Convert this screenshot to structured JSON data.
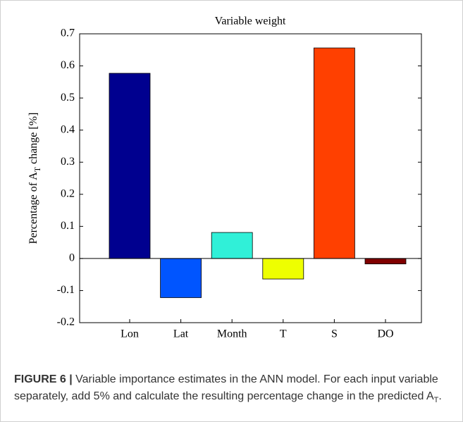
{
  "chart_data": {
    "type": "bar",
    "title": "Variable weight",
    "ylabel": "Percentage of A",
    "ylabel_sub": "T",
    "ylabel_end": "change [%]",
    "categories": [
      "Lon",
      "Lat",
      "Month",
      "T",
      "S",
      "DO"
    ],
    "values": [
      0.577,
      -0.122,
      0.081,
      -0.064,
      0.656,
      -0.017
    ],
    "colors": [
      "#00008f",
      "#0055ff",
      "#30f0d8",
      "#eeff00",
      "#ff4000",
      "#800000"
    ],
    "ylim": [
      -0.2,
      0.7
    ],
    "yticks": [
      -0.2,
      -0.1,
      0,
      0.1,
      0.2,
      0.3,
      0.4,
      0.5,
      0.6,
      0.7
    ],
    "grid": false
  },
  "caption": {
    "label": "FIGURE 6 |",
    "text": "Variable importance estimates in the ANN model. For each input variable separately, add 5% and calculate the resulting percentage change in the predicted A",
    "sub": "T",
    "end": "."
  }
}
